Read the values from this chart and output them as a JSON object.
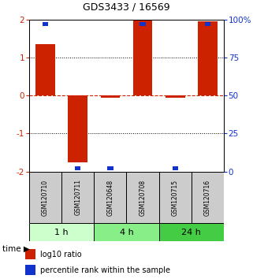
{
  "title": "GDS3433 / 16569",
  "samples": [
    "GSM120710",
    "GSM120711",
    "GSM120648",
    "GSM120708",
    "GSM120715",
    "GSM120716"
  ],
  "log10_ratio": [
    1.35,
    -1.75,
    -0.05,
    2.0,
    -0.05,
    1.95
  ],
  "percentile_rank": [
    97,
    2,
    2,
    97,
    2,
    97
  ],
  "ylim_left": [
    -2,
    2
  ],
  "ylim_right": [
    0,
    100
  ],
  "yticks_left": [
    -2,
    -1,
    0,
    1,
    2
  ],
  "yticks_right": [
    0,
    25,
    50,
    75,
    100
  ],
  "ytick_labels_right": [
    "0",
    "25",
    "50",
    "75",
    "100%"
  ],
  "time_groups": [
    {
      "label": "1 h",
      "start": 0,
      "end": 2,
      "color": "#ccffcc"
    },
    {
      "label": "4 h",
      "start": 2,
      "end": 4,
      "color": "#88ee88"
    },
    {
      "label": "24 h",
      "start": 4,
      "end": 6,
      "color": "#44cc44"
    }
  ],
  "bar_color_red": "#cc2200",
  "bar_color_blue": "#1133cc",
  "bar_width": 0.6,
  "dotted_lines_black": [
    -1,
    1
  ],
  "dashed_zero_color": "#cc2200",
  "legend_red_label": "log10 ratio",
  "legend_blue_label": "percentile rank within the sample",
  "sample_box_color": "#cccccc",
  "sample_text_fontsize": 5.5,
  "title_fontsize": 9,
  "time_fontsize": 8,
  "legend_fontsize": 7
}
